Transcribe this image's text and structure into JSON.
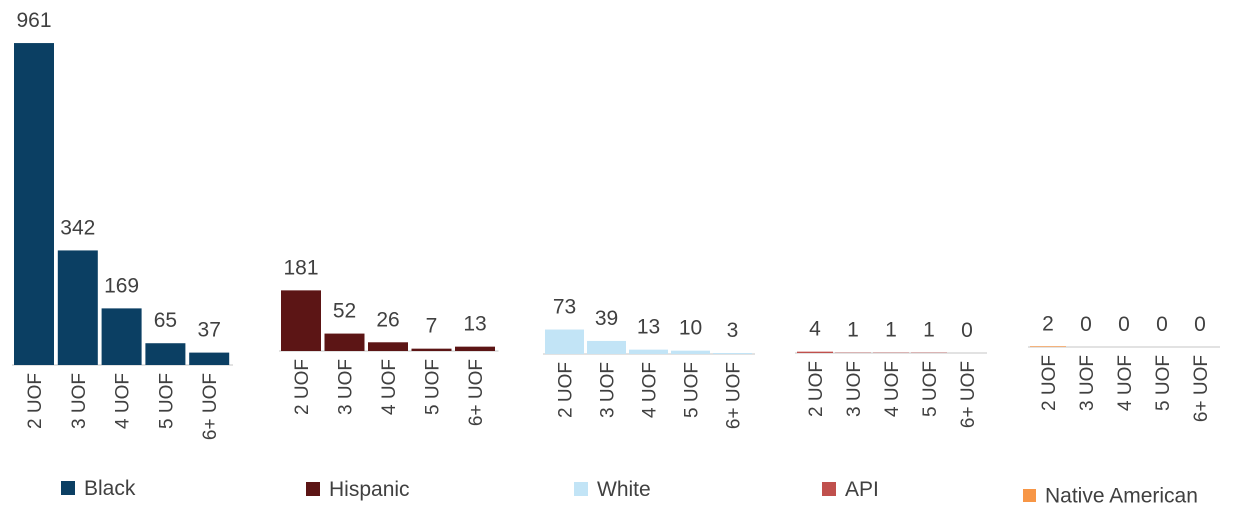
{
  "chart_data": [
    {
      "type": "bar",
      "categories": [
        "2 UOF",
        "3 UOF",
        "4 UOF",
        "5 UOF",
        "6+ UOF"
      ],
      "series": [
        {
          "name": "Black",
          "color": "#0b3f63",
          "values": [
            961,
            342,
            169,
            65,
            37
          ]
        }
      ]
    },
    {
      "type": "bar",
      "categories": [
        "2 UOF",
        "3 UOF",
        "4 UOF",
        "5 UOF",
        "6+ UOF"
      ],
      "series": [
        {
          "name": "Hispanic",
          "color": "#5c1515",
          "values": [
            181,
            52,
            26,
            7,
            13
          ]
        }
      ]
    },
    {
      "type": "bar",
      "categories": [
        "2 UOF",
        "3 UOF",
        "4 UOF",
        "5 UOF",
        "6+ UOF"
      ],
      "series": [
        {
          "name": "White",
          "color": "#c2e4f6",
          "values": [
            73,
            39,
            13,
            10,
            3
          ]
        }
      ]
    },
    {
      "type": "bar",
      "categories": [
        "2 UOF",
        "3 UOF",
        "4 UOF",
        "5 UOF",
        "6+ UOF"
      ],
      "series": [
        {
          "name": "API",
          "color": "#c0504d",
          "values": [
            4,
            1,
            1,
            1,
            0
          ]
        }
      ]
    },
    {
      "type": "bar",
      "categories": [
        "2 UOF",
        "3 UOF",
        "4 UOF",
        "5 UOF",
        "6+ UOF"
      ],
      "series": [
        {
          "name": "Native American",
          "color": "#f79646",
          "values": [
            2,
            0,
            0,
            0,
            0
          ]
        }
      ]
    }
  ]
}
